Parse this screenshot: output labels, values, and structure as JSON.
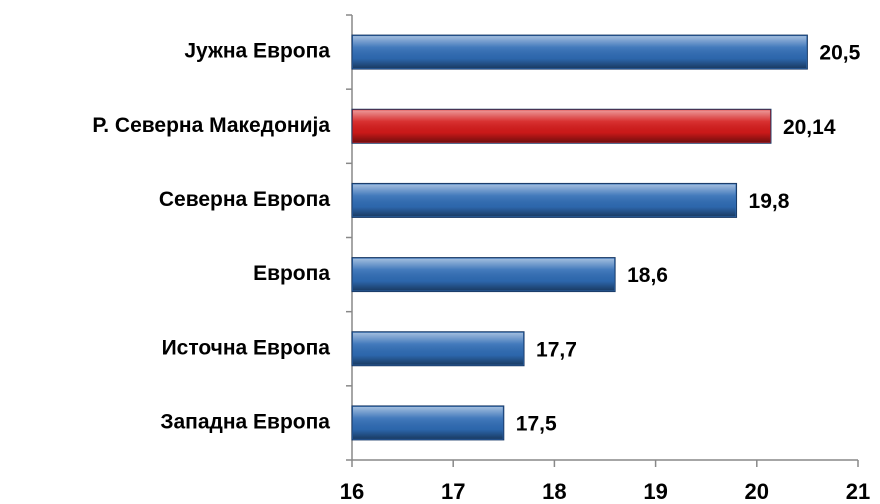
{
  "chart_data": {
    "type": "bar",
    "orientation": "horizontal",
    "categories": [
      "Јужна Европа",
      "Р. Северна Македонија",
      "Северна Европа",
      "Европа",
      "Источна Европа",
      "Западна Европа"
    ],
    "values": [
      20.5,
      20.14,
      19.8,
      18.6,
      17.7,
      17.5
    ],
    "value_labels": [
      "20,5",
      "20,14",
      "19,8",
      "18,6",
      "17,7",
      "17,5"
    ],
    "colors": [
      "#2f6cb5",
      "#d41a1a",
      "#2f6cb5",
      "#2f6cb5",
      "#2f6cb5",
      "#2f6cb5"
    ],
    "xlim": [
      16,
      21
    ],
    "xticks": [
      16,
      17,
      18,
      19,
      20,
      21
    ]
  }
}
